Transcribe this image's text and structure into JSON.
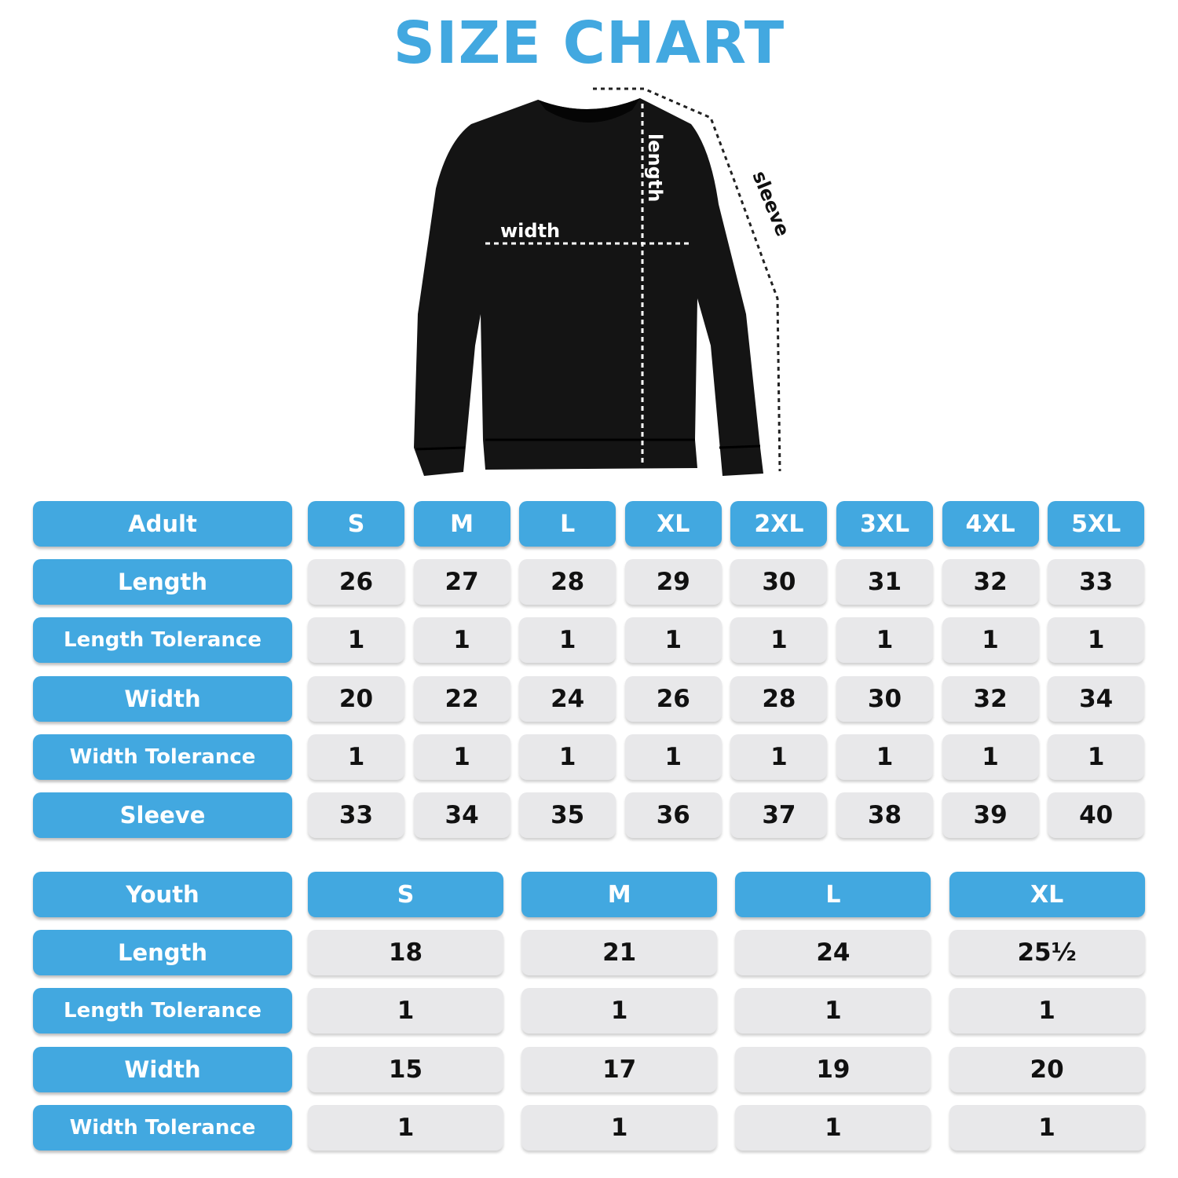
{
  "header": {
    "title": "SIZE CHART"
  },
  "diagram": {
    "width_label": "width",
    "length_label": "length",
    "sleeve_label": "sleeve"
  },
  "adult": {
    "header": [
      "Adult",
      "S",
      "M",
      "L",
      "XL",
      "2XL",
      "3XL",
      "4XL",
      "5XL"
    ],
    "rows": [
      [
        "Length",
        "26",
        "27",
        "28",
        "29",
        "30",
        "31",
        "32",
        "33"
      ],
      [
        "Length Tolerance",
        "1",
        "1",
        "1",
        "1",
        "1",
        "1",
        "1",
        "1"
      ],
      [
        "Width",
        "20",
        "22",
        "24",
        "26",
        "28",
        "30",
        "32",
        "34"
      ],
      [
        "Width Tolerance",
        "1",
        "1",
        "1",
        "1",
        "1",
        "1",
        "1",
        "1"
      ],
      [
        "Sleeve",
        "33",
        "34",
        "35",
        "36",
        "37",
        "38",
        "39",
        "40"
      ]
    ]
  },
  "youth": {
    "header": [
      "Youth",
      "S",
      "M",
      "L",
      "XL"
    ],
    "rows": [
      [
        "Length",
        "18",
        "21",
        "24",
        "25½"
      ],
      [
        "Length Tolerance",
        "1",
        "1",
        "1",
        "1"
      ],
      [
        "Width",
        "15",
        "17",
        "19",
        "20"
      ],
      [
        "Width Tolerance",
        "1",
        "1",
        "1",
        "1"
      ]
    ]
  }
}
